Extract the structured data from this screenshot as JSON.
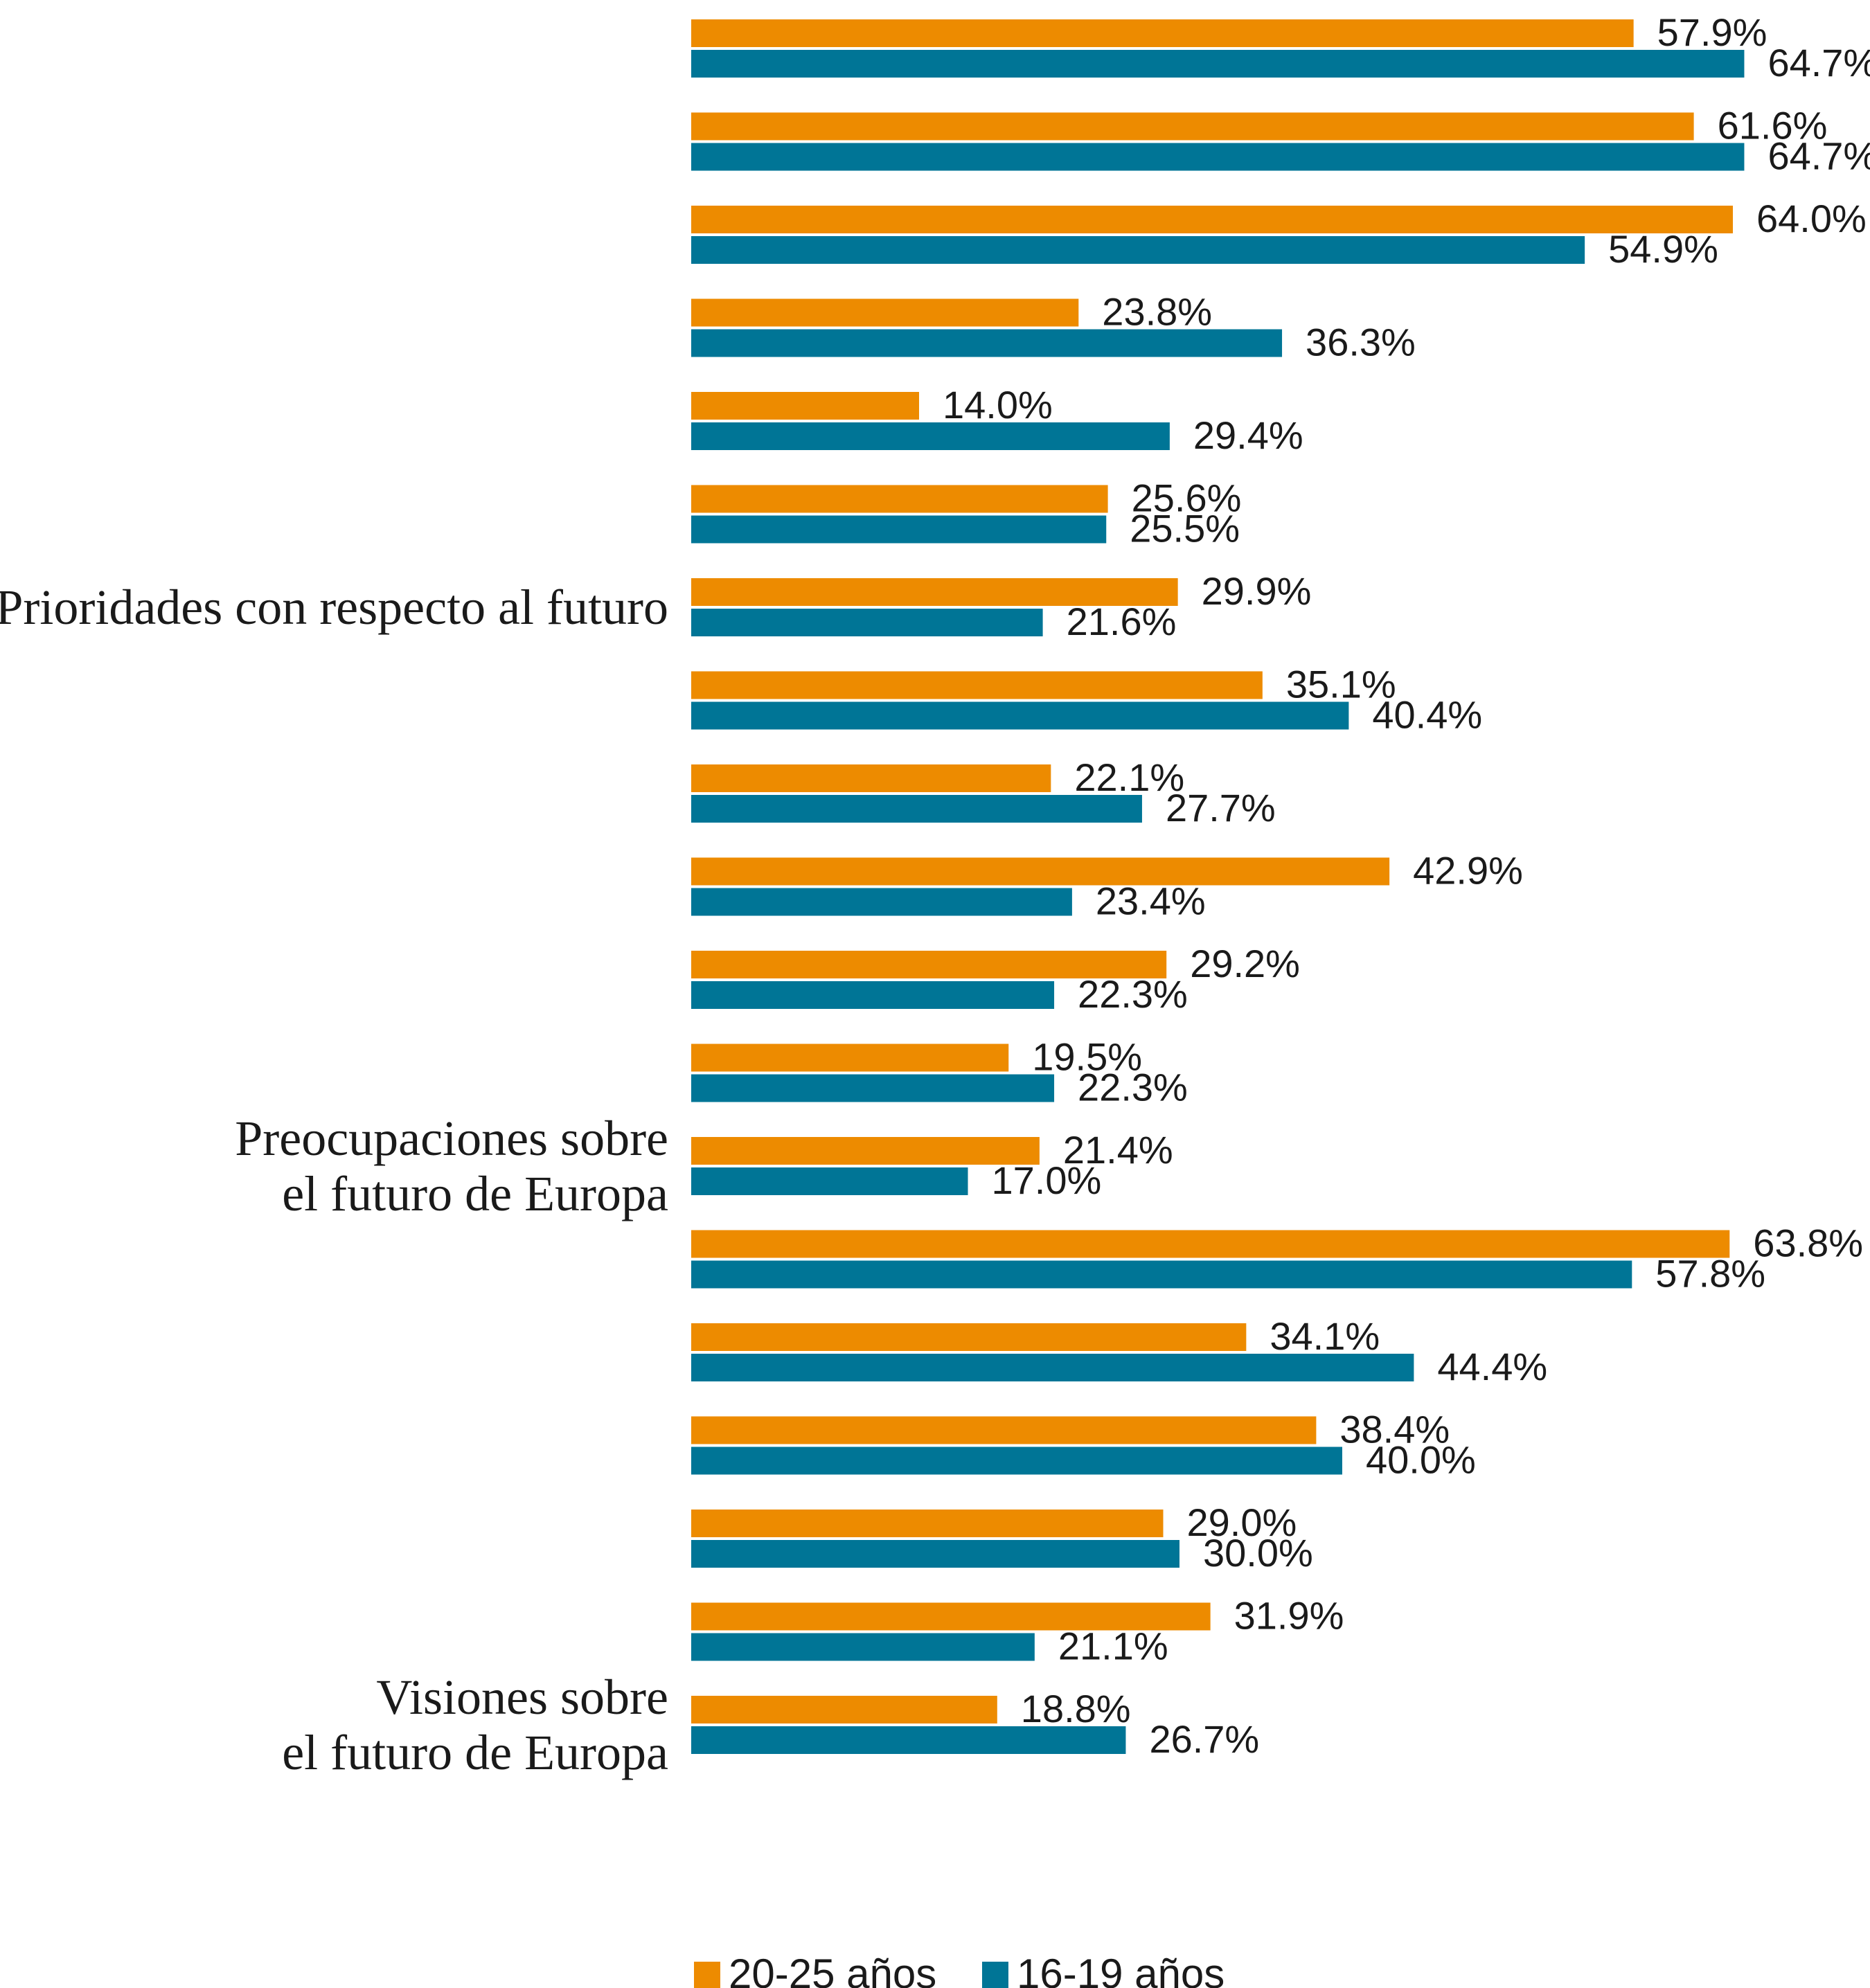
{
  "chart_data": {
    "type": "bar",
    "orientation": "horizontal",
    "title": "",
    "xlabel": "",
    "ylabel": "",
    "xlim": [
      0,
      70
    ],
    "grid": false,
    "legend_position": "bottom",
    "value_suffix": "%",
    "colors": {
      "20-25 años": "#ed8b00",
      "16-19 años": "#007596"
    },
    "series": [
      {
        "name": "20-25 años",
        "values": [
          57.9,
          61.6,
          64.0,
          23.8,
          14.0,
          25.6,
          29.9,
          35.1,
          22.1,
          42.9,
          29.2,
          19.5,
          21.4,
          63.8,
          34.1,
          38.4,
          29.0,
          31.9,
          18.8
        ]
      },
      {
        "name": "16-19 años",
        "values": [
          64.7,
          64.7,
          54.9,
          36.3,
          29.4,
          25.5,
          21.6,
          40.4,
          27.7,
          23.4,
          22.3,
          22.3,
          17.0,
          57.8,
          44.4,
          40.0,
          30.0,
          21.1,
          26.7
        ]
      }
    ],
    "groups": [
      {
        "label_lines": [
          "Prioridades con respecto al futuro"
        ],
        "anchor_index": 6
      },
      {
        "label_lines": [
          "Preocupaciones sobre",
          "el futuro de Europa"
        ],
        "anchor_index": 12
      },
      {
        "label_lines": [
          "Visiones sobre",
          "el futuro de Europa"
        ],
        "anchor_index": 18
      }
    ]
  }
}
